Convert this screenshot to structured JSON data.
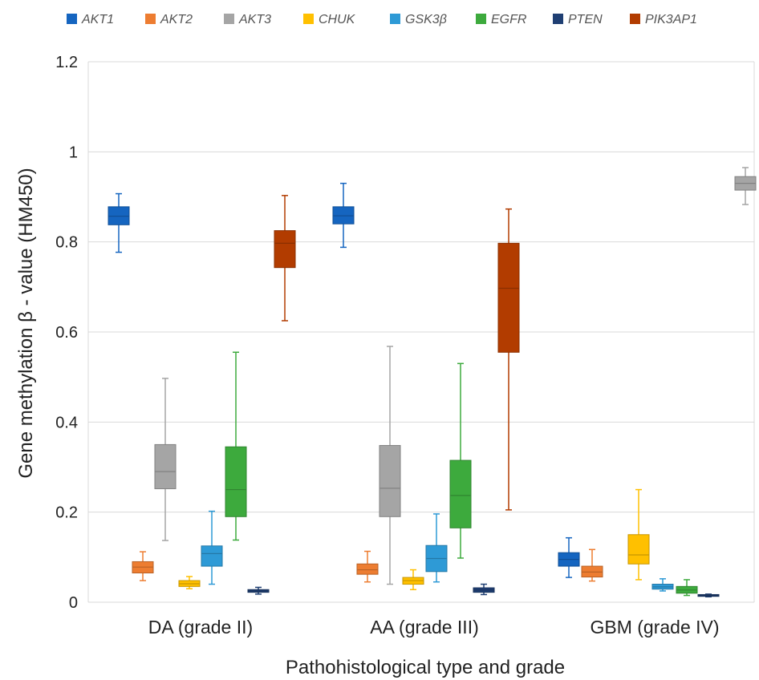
{
  "chart_data": {
    "type": "boxplot",
    "xlabel": "Pathohistological type and grade",
    "ylabel": "Gene methylation β - value (HM450)",
    "ylim": [
      0,
      1.2
    ],
    "y_ticks": [
      "0",
      "0.2",
      "0.4",
      "0.6",
      "0.8",
      "1",
      "1.2"
    ],
    "y_tick_values": [
      0,
      0.2,
      0.4,
      0.6,
      0.8,
      1.0,
      1.2
    ],
    "grid": true,
    "legend_position": "top",
    "categories": [
      "DA (grade II)",
      "AA (grade III)",
      "GBM (grade IV)"
    ],
    "series": [
      {
        "name": "AKT1",
        "color": "#1565C0",
        "boxes": [
          {
            "min": 0.777,
            "q1": 0.838,
            "median": 0.857,
            "q3": 0.878,
            "max": 0.907
          },
          {
            "min": 0.788,
            "q1": 0.84,
            "median": 0.858,
            "q3": 0.878,
            "max": 0.93
          },
          {
            "min": 0.055,
            "q1": 0.08,
            "median": 0.095,
            "q3": 0.11,
            "max": 0.143
          }
        ]
      },
      {
        "name": "AKT2",
        "color": "#ED7D31",
        "boxes": [
          {
            "min": 0.048,
            "q1": 0.065,
            "median": 0.078,
            "q3": 0.09,
            "max": 0.112
          },
          {
            "min": 0.045,
            "q1": 0.062,
            "median": 0.072,
            "q3": 0.085,
            "max": 0.113
          },
          {
            "min": 0.047,
            "q1": 0.056,
            "median": 0.067,
            "q3": 0.08,
            "max": 0.117
          }
        ]
      },
      {
        "name": "AKT3",
        "color": "#A5A5A5",
        "boxes": [
          {
            "min": 0.137,
            "q1": 0.252,
            "median": 0.29,
            "q3": 0.35,
            "max": 0.497
          },
          {
            "min": 0.04,
            "q1": 0.19,
            "median": 0.253,
            "q3": 0.348,
            "max": 0.568
          },
          {
            "min": 0.883,
            "q1": 0.915,
            "median": 0.93,
            "q3": 0.945,
            "max": 0.965
          }
        ]
      },
      {
        "name": "CHUK",
        "color": "#FFC000",
        "boxes": [
          {
            "min": 0.03,
            "q1": 0.035,
            "median": 0.041,
            "q3": 0.048,
            "max": 0.057
          },
          {
            "min": 0.028,
            "q1": 0.04,
            "median": 0.048,
            "q3": 0.055,
            "max": 0.072
          },
          {
            "min": 0.05,
            "q1": 0.085,
            "median": 0.105,
            "q3": 0.15,
            "max": 0.25
          }
        ]
      },
      {
        "name": "GSK3β",
        "color": "#2E9AD6",
        "boxes": [
          {
            "min": 0.04,
            "q1": 0.08,
            "median": 0.108,
            "q3": 0.125,
            "max": 0.202
          },
          {
            "min": 0.045,
            "q1": 0.068,
            "median": 0.097,
            "q3": 0.126,
            "max": 0.196
          },
          {
            "min": 0.025,
            "q1": 0.029,
            "median": 0.034,
            "q3": 0.04,
            "max": 0.052
          }
        ]
      },
      {
        "name": "EGFR",
        "color": "#3DAA3D",
        "boxes": [
          {
            "min": 0.138,
            "q1": 0.19,
            "median": 0.25,
            "q3": 0.345,
            "max": 0.555
          },
          {
            "min": 0.098,
            "q1": 0.165,
            "median": 0.237,
            "q3": 0.315,
            "max": 0.53
          },
          {
            "min": 0.015,
            "q1": 0.02,
            "median": 0.027,
            "q3": 0.035,
            "max": 0.05
          }
        ]
      },
      {
        "name": "PTEN",
        "color": "#1F3F73",
        "boxes": [
          {
            "min": 0.018,
            "q1": 0.022,
            "median": 0.025,
            "q3": 0.028,
            "max": 0.033
          },
          {
            "min": 0.017,
            "q1": 0.022,
            "median": 0.027,
            "q3": 0.032,
            "max": 0.04
          },
          {
            "min": 0.012,
            "q1": 0.013,
            "median": 0.015,
            "q3": 0.017,
            "max": 0.018
          }
        ]
      },
      {
        "name": "PIK3AP1",
        "color": "#B23C00",
        "boxes": [
          {
            "min": 0.625,
            "q1": 0.743,
            "median": 0.797,
            "q3": 0.825,
            "max": 0.903
          },
          {
            "min": 0.205,
            "q1": 0.555,
            "median": 0.697,
            "q3": 0.797,
            "max": 0.873
          },
          null
        ]
      }
    ]
  }
}
